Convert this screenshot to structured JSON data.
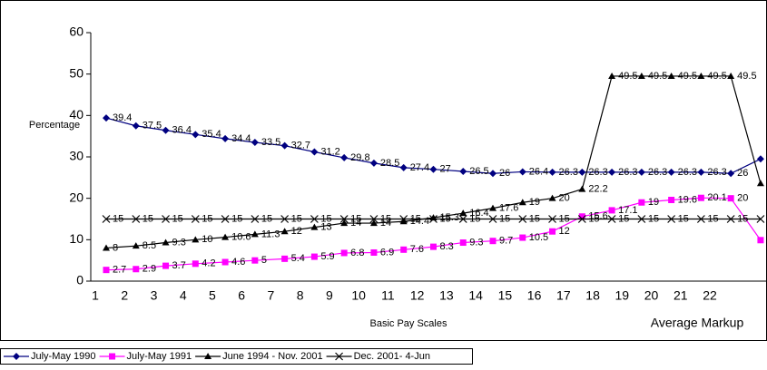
{
  "chart_data": {
    "type": "line",
    "y_axis_label": "Percentage",
    "x_axis_label": "Basic Pay Scales",
    "annotation": "Average Markup",
    "categories": [
      "1",
      "2",
      "3",
      "4",
      "5",
      "6",
      "7",
      "8",
      "9",
      "10",
      "11",
      "12",
      "13",
      "14",
      "15",
      "16",
      "17",
      "18",
      "19",
      "20",
      "21",
      "22",
      null
    ],
    "ylim": [
      0,
      60
    ],
    "yticks": [
      0,
      10,
      20,
      30,
      40,
      50,
      60
    ],
    "grid": false,
    "series": [
      {
        "name": "July-May 1990",
        "color": "#000080",
        "marker": "diamond",
        "values": [
          39.4,
          37.5,
          36.4,
          35.4,
          34.4,
          33.5,
          32.7,
          31.2,
          29.8,
          28.5,
          27.4,
          27,
          26.5,
          26,
          26.4,
          26.3,
          26.3,
          26.3,
          26.3,
          26.3,
          26.3,
          26,
          29.5
        ]
      },
      {
        "name": "July-May 1991",
        "color": "#ff00ff",
        "marker": "square",
        "values": [
          2.7,
          2.9,
          3.7,
          4.2,
          4.6,
          5,
          5.4,
          5.9,
          6.8,
          6.9,
          7.6,
          8.3,
          9.3,
          9.7,
          10.5,
          12,
          15.6,
          17.1,
          19,
          19.6,
          20.1,
          20,
          9.9
        ]
      },
      {
        "name": "June 1994 - Nov. 2001",
        "color": "#000000",
        "marker": "triangle",
        "values": [
          8,
          8.5,
          9.3,
          10,
          10.6,
          11.3,
          12,
          13,
          14,
          14,
          14.4,
          15.3,
          16.4,
          17.6,
          19,
          20,
          22.2,
          49.5,
          49.5,
          49.5,
          49.5,
          49.5,
          23.6
        ]
      },
      {
        "name": "Dec. 2001- 4-Jun",
        "color": "#000000",
        "marker": "x",
        "values": [
          15,
          15,
          15,
          15,
          15,
          15,
          15,
          15,
          15,
          15,
          15,
          15,
          15,
          15,
          15,
          15,
          15,
          15,
          15,
          15,
          15,
          15,
          15
        ]
      }
    ]
  }
}
